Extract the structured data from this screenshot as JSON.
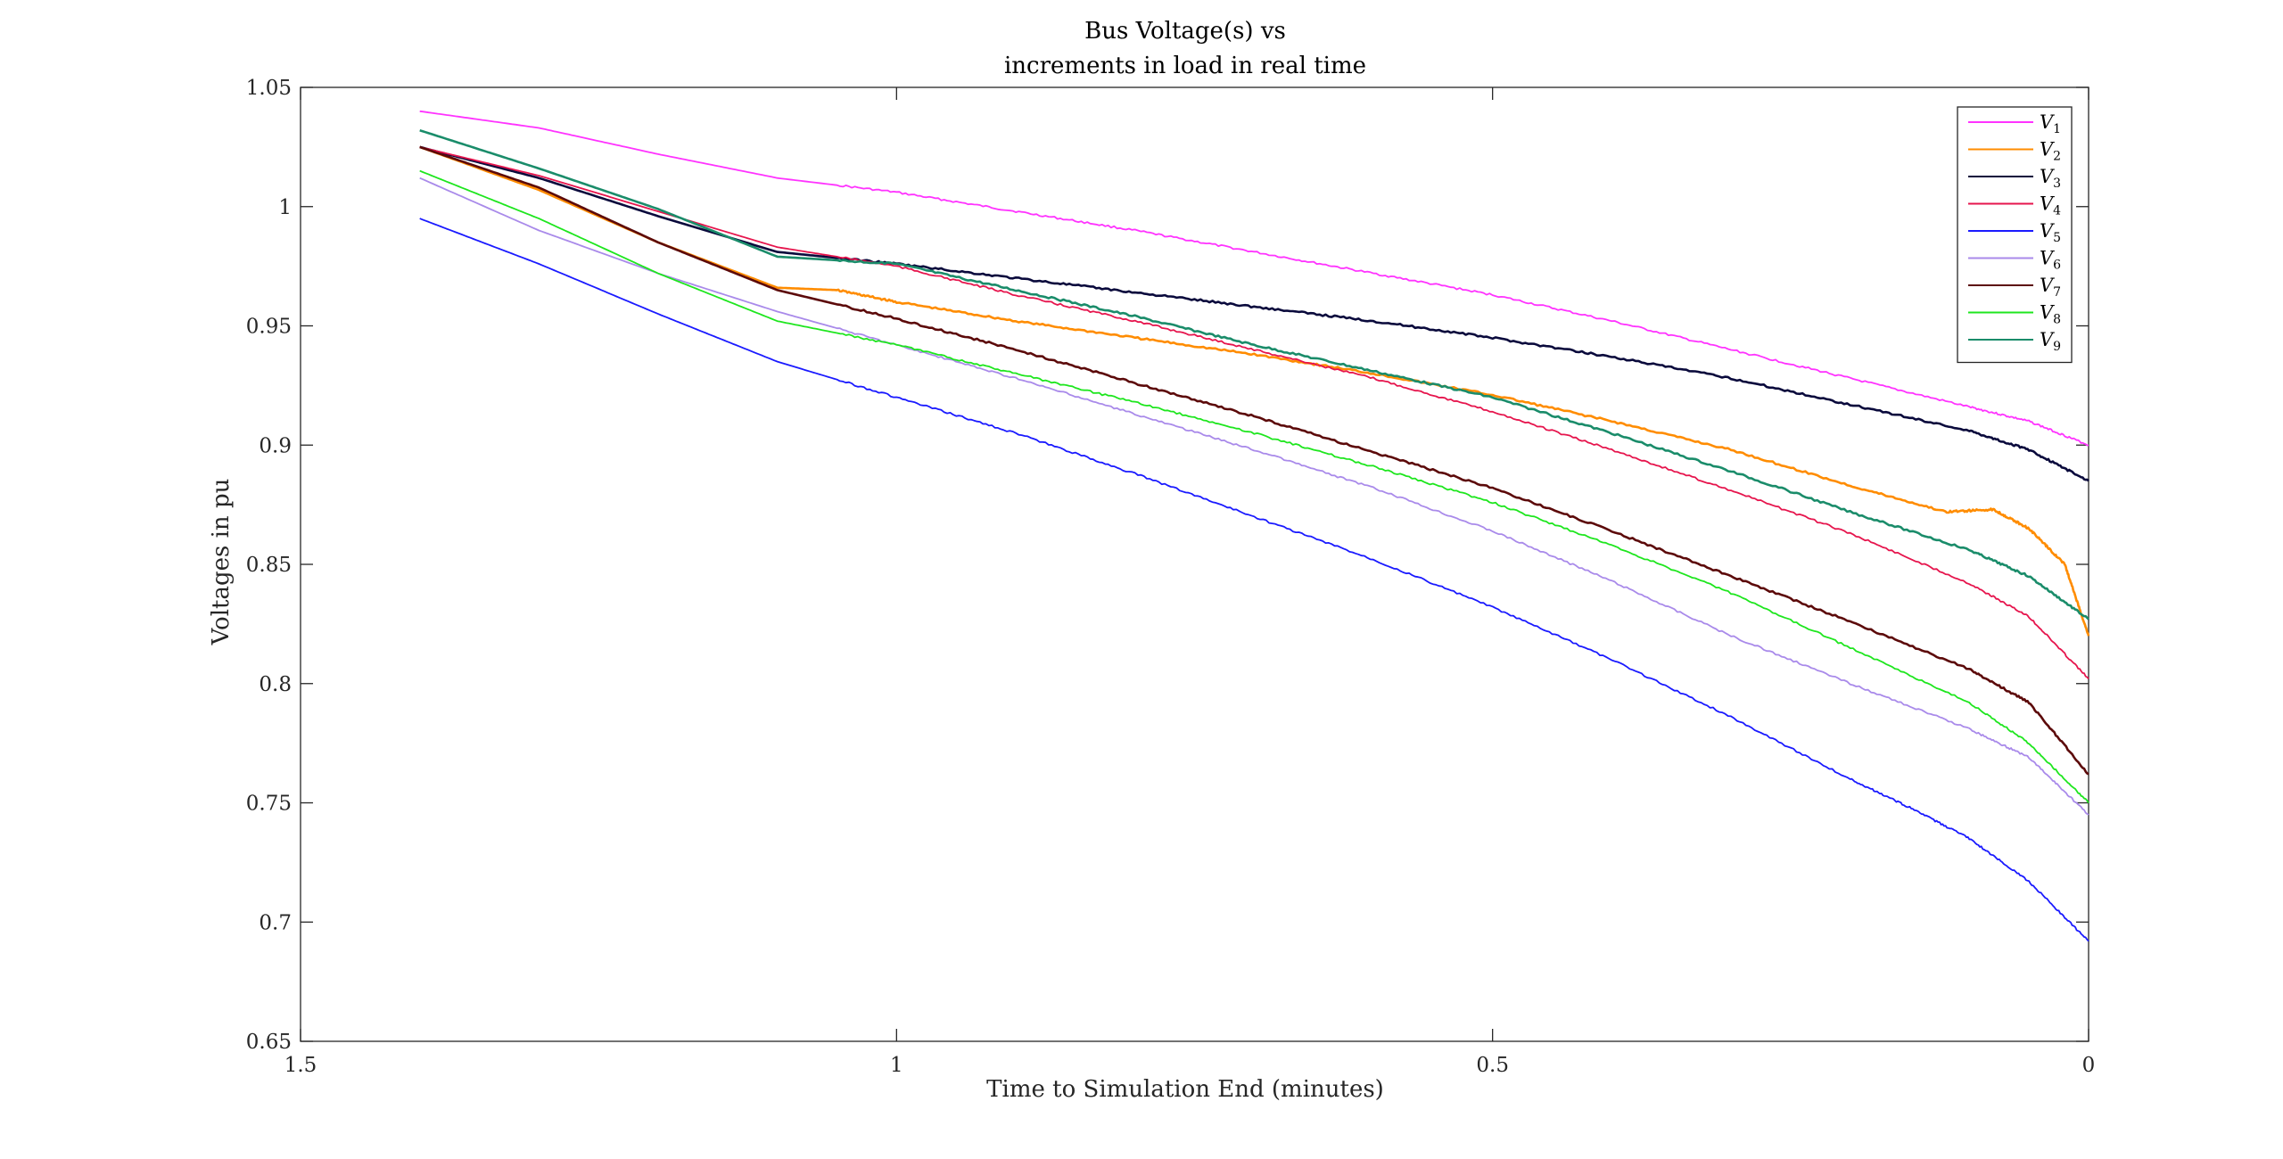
{
  "chart_data": {
    "type": "line",
    "title": [
      "Bus Voltage(s) vs",
      "increments in load in real time"
    ],
    "xlabel": "Time to Simulation End (minutes)",
    "ylabel": "Voltages in pu",
    "xlim": [
      1.5,
      0
    ],
    "x_reversed": true,
    "ylim": [
      0.65,
      1.05
    ],
    "xticks": [
      1.5,
      1,
      0.5,
      0
    ],
    "xtick_labels": [
      "1.5",
      "1",
      "0.5",
      "0"
    ],
    "yticks": [
      0.65,
      0.7,
      0.75,
      0.8,
      0.85,
      0.9,
      0.95,
      1,
      1.05
    ],
    "ytick_labels": [
      "0.65",
      "0.7",
      "0.75",
      "0.8",
      "0.85",
      "0.9",
      "0.95",
      "1",
      "1.05"
    ],
    "grid": false,
    "legend_position": "top-right",
    "series": [
      {
        "name": "V",
        "sub": "1",
        "color": "#ff33ff",
        "points": [
          [
            1.4,
            1.04
          ],
          [
            1.3,
            1.033
          ],
          [
            1.2,
            1.022
          ],
          [
            1.1,
            1.012
          ],
          [
            1.0,
            1.006
          ],
          [
            0.9,
            0.998
          ],
          [
            0.8,
            0.99
          ],
          [
            0.7,
            0.981
          ],
          [
            0.6,
            0.972
          ],
          [
            0.5,
            0.963
          ],
          [
            0.4,
            0.952
          ],
          [
            0.3,
            0.94
          ],
          [
            0.2,
            0.928
          ],
          [
            0.1,
            0.916
          ],
          [
            0.05,
            0.91
          ],
          [
            0.0,
            0.9
          ]
        ]
      },
      {
        "name": "V",
        "sub": "2",
        "color": "#ff8c00",
        "points": [
          [
            1.4,
            1.025
          ],
          [
            1.3,
            1.007
          ],
          [
            1.2,
            0.985
          ],
          [
            1.1,
            0.966
          ],
          [
            1.05,
            0.965
          ],
          [
            1.0,
            0.96
          ],
          [
            0.9,
            0.952
          ],
          [
            0.8,
            0.945
          ],
          [
            0.7,
            0.938
          ],
          [
            0.6,
            0.93
          ],
          [
            0.5,
            0.921
          ],
          [
            0.4,
            0.91
          ],
          [
            0.3,
            0.898
          ],
          [
            0.2,
            0.883
          ],
          [
            0.12,
            0.872
          ],
          [
            0.08,
            0.873
          ],
          [
            0.05,
            0.865
          ],
          [
            0.02,
            0.85
          ],
          [
            0.0,
            0.82
          ]
        ]
      },
      {
        "name": "V",
        "sub": "3",
        "color": "#0a0a3c",
        "points": [
          [
            1.4,
            1.025
          ],
          [
            1.3,
            1.012
          ],
          [
            1.2,
            0.996
          ],
          [
            1.1,
            0.981
          ],
          [
            1.0,
            0.976
          ],
          [
            0.9,
            0.97
          ],
          [
            0.8,
            0.964
          ],
          [
            0.7,
            0.958
          ],
          [
            0.6,
            0.952
          ],
          [
            0.5,
            0.945
          ],
          [
            0.4,
            0.937
          ],
          [
            0.3,
            0.928
          ],
          [
            0.2,
            0.917
          ],
          [
            0.1,
            0.906
          ],
          [
            0.05,
            0.898
          ],
          [
            0.0,
            0.885
          ]
        ]
      },
      {
        "name": "V",
        "sub": "4",
        "color": "#e6154d",
        "points": [
          [
            1.4,
            1.025
          ],
          [
            1.3,
            1.013
          ],
          [
            1.2,
            0.998
          ],
          [
            1.1,
            0.983
          ],
          [
            1.0,
            0.975
          ],
          [
            0.9,
            0.963
          ],
          [
            0.8,
            0.952
          ],
          [
            0.7,
            0.94
          ],
          [
            0.6,
            0.928
          ],
          [
            0.5,
            0.914
          ],
          [
            0.4,
            0.898
          ],
          [
            0.3,
            0.881
          ],
          [
            0.2,
            0.863
          ],
          [
            0.1,
            0.842
          ],
          [
            0.05,
            0.828
          ],
          [
            0.0,
            0.802
          ]
        ]
      },
      {
        "name": "V",
        "sub": "5",
        "color": "#1a1aff",
        "points": [
          [
            1.4,
            0.995
          ],
          [
            1.3,
            0.976
          ],
          [
            1.2,
            0.955
          ],
          [
            1.1,
            0.935
          ],
          [
            1.0,
            0.92
          ],
          [
            0.9,
            0.905
          ],
          [
            0.8,
            0.888
          ],
          [
            0.7,
            0.87
          ],
          [
            0.6,
            0.852
          ],
          [
            0.5,
            0.832
          ],
          [
            0.4,
            0.81
          ],
          [
            0.3,
            0.786
          ],
          [
            0.2,
            0.76
          ],
          [
            0.15,
            0.748
          ],
          [
            0.1,
            0.735
          ],
          [
            0.05,
            0.717
          ],
          [
            0.0,
            0.692
          ]
        ]
      },
      {
        "name": "V",
        "sub": "6",
        "color": "#a98aea",
        "points": [
          [
            1.4,
            1.012
          ],
          [
            1.3,
            0.99
          ],
          [
            1.2,
            0.972
          ],
          [
            1.1,
            0.956
          ],
          [
            1.0,
            0.942
          ],
          [
            0.9,
            0.928
          ],
          [
            0.8,
            0.913
          ],
          [
            0.7,
            0.898
          ],
          [
            0.6,
            0.882
          ],
          [
            0.5,
            0.864
          ],
          [
            0.4,
            0.843
          ],
          [
            0.3,
            0.82
          ],
          [
            0.2,
            0.8
          ],
          [
            0.1,
            0.781
          ],
          [
            0.05,
            0.769
          ],
          [
            0.0,
            0.745
          ]
        ]
      },
      {
        "name": "V",
        "sub": "7",
        "color": "#5c0a0a",
        "points": [
          [
            1.4,
            1.025
          ],
          [
            1.3,
            1.008
          ],
          [
            1.2,
            0.985
          ],
          [
            1.1,
            0.965
          ],
          [
            1.0,
            0.953
          ],
          [
            0.9,
            0.94
          ],
          [
            0.8,
            0.926
          ],
          [
            0.7,
            0.912
          ],
          [
            0.6,
            0.897
          ],
          [
            0.5,
            0.882
          ],
          [
            0.4,
            0.864
          ],
          [
            0.3,
            0.845
          ],
          [
            0.2,
            0.826
          ],
          [
            0.1,
            0.806
          ],
          [
            0.05,
            0.792
          ],
          [
            0.0,
            0.762
          ]
        ]
      },
      {
        "name": "V",
        "sub": "8",
        "color": "#1ee61e",
        "points": [
          [
            1.4,
            1.015
          ],
          [
            1.3,
            0.995
          ],
          [
            1.2,
            0.972
          ],
          [
            1.1,
            0.952
          ],
          [
            1.0,
            0.942
          ],
          [
            0.9,
            0.93
          ],
          [
            0.8,
            0.918
          ],
          [
            0.7,
            0.905
          ],
          [
            0.6,
            0.891
          ],
          [
            0.5,
            0.876
          ],
          [
            0.4,
            0.858
          ],
          [
            0.3,
            0.838
          ],
          [
            0.2,
            0.815
          ],
          [
            0.1,
            0.792
          ],
          [
            0.05,
            0.775
          ],
          [
            0.0,
            0.75
          ]
        ]
      },
      {
        "name": "V",
        "sub": "9",
        "color": "#1a8c6a",
        "points": [
          [
            1.4,
            1.032
          ],
          [
            1.3,
            1.016
          ],
          [
            1.2,
            0.999
          ],
          [
            1.1,
            0.979
          ],
          [
            1.0,
            0.976
          ],
          [
            0.9,
            0.965
          ],
          [
            0.8,
            0.954
          ],
          [
            0.7,
            0.942
          ],
          [
            0.6,
            0.931
          ],
          [
            0.5,
            0.92
          ],
          [
            0.4,
            0.905
          ],
          [
            0.3,
            0.889
          ],
          [
            0.2,
            0.872
          ],
          [
            0.1,
            0.856
          ],
          [
            0.05,
            0.845
          ],
          [
            0.0,
            0.827
          ]
        ]
      }
    ]
  }
}
